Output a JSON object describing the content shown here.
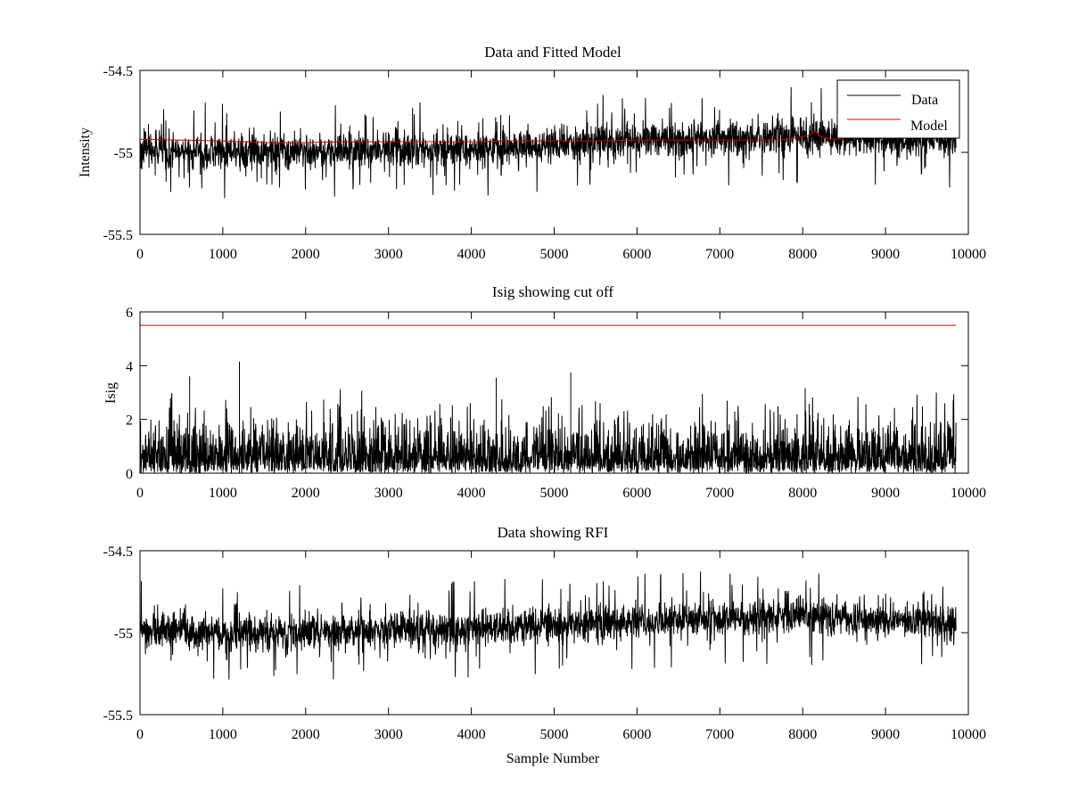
{
  "chart_data": [
    {
      "type": "line",
      "title": "Data and Fitted Model",
      "xlabel": "",
      "ylabel": "Intensity",
      "xlim": [
        0,
        10000
      ],
      "ylim": [
        -55.5,
        -54.5
      ],
      "xticks": [
        "0",
        "1000",
        "2000",
        "3000",
        "4000",
        "5000",
        "6000",
        "7000",
        "8000",
        "9000",
        "10000"
      ],
      "yticks": [
        "-54.5",
        "-55",
        "-55.5"
      ],
      "legend": {
        "position": "top-right",
        "entries": [
          "Data",
          "Model"
        ]
      },
      "series": [
        {
          "name": "Data",
          "color": "#000000",
          "generator": "noise",
          "x_range": [
            0,
            9850
          ],
          "trend": [
            [
              0,
              -54.98
            ],
            [
              1000,
              -55.0
            ],
            [
              2000,
              -55.0
            ],
            [
              3000,
              -54.98
            ],
            [
              4000,
              -54.98
            ],
            [
              5000,
              -54.95
            ],
            [
              6000,
              -54.93
            ],
            [
              7000,
              -54.91
            ],
            [
              8000,
              -54.9
            ],
            [
              9000,
              -54.92
            ],
            [
              9850,
              -54.94
            ]
          ],
          "band": 0.1,
          "spike": 0.3
        },
        {
          "name": "Model",
          "color": "#cc0000",
          "x": [
            0,
            500,
            1000,
            1500,
            2000,
            2500,
            3000,
            3500,
            4000,
            4500,
            5000,
            5500,
            6000,
            6500,
            7000,
            7500,
            7800,
            8000,
            8100,
            8150,
            8200,
            8300,
            8400,
            8500
          ],
          "y": [
            -54.92,
            -54.925,
            -54.93,
            -54.94,
            -54.94,
            -54.935,
            -54.935,
            -54.935,
            -54.935,
            -54.93,
            -54.93,
            -54.93,
            -54.925,
            -54.925,
            -54.925,
            -54.925,
            -54.92,
            -54.905,
            -54.89,
            -54.87,
            -54.9,
            -54.915,
            -54.92,
            -54.92
          ]
        }
      ]
    },
    {
      "type": "line",
      "title": "Isig showing cut off",
      "xlabel": "",
      "ylabel": "Isig",
      "xlim": [
        0,
        10000
      ],
      "ylim": [
        0,
        6
      ],
      "xticks": [
        "0",
        "1000",
        "2000",
        "3000",
        "4000",
        "5000",
        "6000",
        "7000",
        "8000",
        "9000",
        "10000"
      ],
      "yticks": [
        "0",
        "2",
        "4",
        "6"
      ],
      "series": [
        {
          "name": "Isig",
          "color": "#000000",
          "generator": "abs-noise",
          "x_range": [
            0,
            9850
          ],
          "band": 1.1,
          "spike": 3.0,
          "peaks": [
            [
              1200,
              4.15
            ],
            [
              600,
              3.6
            ],
            [
              4300,
              3.55
            ],
            [
              5200,
              3.75
            ]
          ]
        },
        {
          "name": "Cut off",
          "color": "#cc0000",
          "x": [
            0,
            9850
          ],
          "y": [
            5.5,
            5.5
          ]
        }
      ]
    },
    {
      "type": "line",
      "title": "Data showing RFI",
      "xlabel": "Sample Number",
      "ylabel": "",
      "xlim": [
        0,
        10000
      ],
      "ylim": [
        -55.5,
        -54.5
      ],
      "xticks": [
        "0",
        "1000",
        "2000",
        "3000",
        "4000",
        "5000",
        "6000",
        "7000",
        "8000",
        "9000",
        "10000"
      ],
      "yticks": [
        "-54.5",
        "-55",
        "-55.5"
      ],
      "series": [
        {
          "name": "Data",
          "color": "#000000",
          "generator": "noise",
          "x_range": [
            0,
            9850
          ],
          "trend": [
            [
              0,
              -54.98
            ],
            [
              1000,
              -55.0
            ],
            [
              2000,
              -55.0
            ],
            [
              3000,
              -54.98
            ],
            [
              4000,
              -54.98
            ],
            [
              5000,
              -54.95
            ],
            [
              6000,
              -54.93
            ],
            [
              7000,
              -54.91
            ],
            [
              8000,
              -54.9
            ],
            [
              9000,
              -54.92
            ],
            [
              9850,
              -54.94
            ]
          ],
          "band": 0.1,
          "spike": 0.3
        }
      ]
    }
  ]
}
